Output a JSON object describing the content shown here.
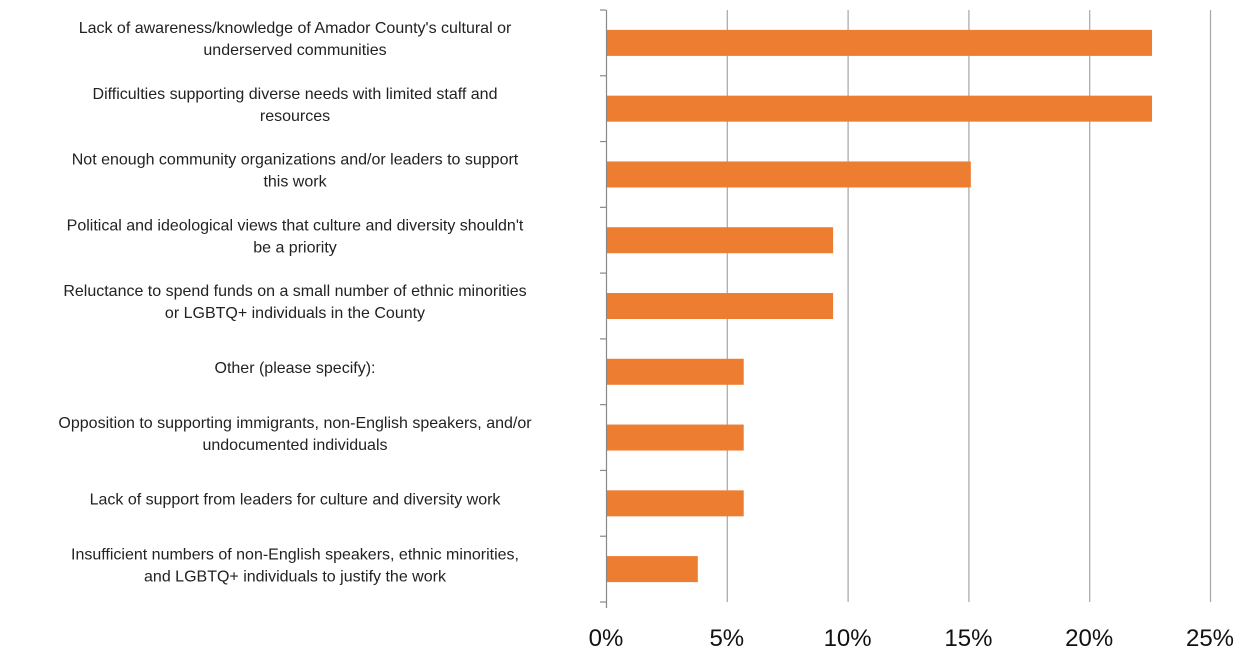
{
  "colors": {
    "bar": "#ED7D31",
    "grid": "#A6A6A6",
    "axis": "#888888"
  },
  "chart_data": {
    "type": "bar",
    "orientation": "horizontal",
    "title": "",
    "xlabel": "",
    "ylabel": "",
    "categories": [
      [
        "Lack of awareness/knowledge of Amador County's cultural or",
        "underserved communities"
      ],
      [
        "Difficulties supporting diverse needs with limited staff and",
        "resources"
      ],
      [
        "Not enough community organizations and/or leaders to support",
        "this work"
      ],
      [
        "Political and ideological views that culture and diversity shouldn't",
        "be a priority"
      ],
      [
        "Reluctance to spend funds on a small number of ethnic minorities",
        "or LGBTQ+ individuals in the County"
      ],
      [
        "Other (please specify):"
      ],
      [
        "Opposition to supporting immigrants, non-English speakers, and/or",
        "undocumented individuals"
      ],
      [
        "Lack of support from leaders for culture and diversity work"
      ],
      [
        "Insufficient numbers of non-English speakers, ethnic minorities,",
        "and LGBTQ+ individuals to justify the work"
      ]
    ],
    "values": [
      22.6,
      22.6,
      15.1,
      9.4,
      9.4,
      5.7,
      5.7,
      5.7,
      3.8
    ],
    "xlim": [
      0,
      25
    ],
    "ticks": [
      0,
      5,
      10,
      15,
      20,
      25
    ],
    "tick_labels": [
      "0%",
      "5%",
      "10%",
      "15%",
      "20%",
      "25%"
    ],
    "grid": true,
    "legend": "none"
  }
}
